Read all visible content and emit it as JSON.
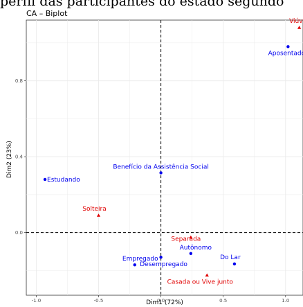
{
  "page": {
    "top_caption": "perfil das participantes do estado segundo"
  },
  "chart_data": {
    "type": "scatter",
    "title": "CA – Biplot",
    "xlabel": "Dim1 (72%)",
    "ylabel": "Dim2 (23%)",
    "xlim": [
      -1.08,
      1.14
    ],
    "ylim": [
      -0.33,
      1.12
    ],
    "x_ticks": [
      -1.0,
      -0.5,
      0.0,
      0.5,
      1.0
    ],
    "x_tick_labels": [
      "-1.0",
      "-0.5",
      "0.0",
      "0.5",
      "1.0"
    ],
    "y_ticks": [
      0.0,
      0.4,
      0.8
    ],
    "y_tick_labels": [
      "0.0",
      "0.4",
      "0.8"
    ],
    "grid": true,
    "series": [
      {
        "marker": "circle",
        "color": "#0000ee",
        "points": [
          {
            "label": "Aposentado",
            "x": 1.02,
            "y": 0.98
          },
          {
            "label": "Estudando",
            "x": -0.93,
            "y": 0.28
          },
          {
            "label": "Benefício da Assistência Social",
            "x": 0.0,
            "y": 0.315
          },
          {
            "label": "Empregado",
            "x": -0.21,
            "y": -0.17
          },
          {
            "label": "Desempregado",
            "x": 0.0,
            "y": -0.13
          },
          {
            "label": "Autônomo",
            "x": 0.24,
            "y": -0.11
          },
          {
            "label": "Do Lar",
            "x": 0.59,
            "y": -0.165
          }
        ]
      },
      {
        "marker": "triangle",
        "color": "#e00000",
        "points": [
          {
            "label": "Viúva",
            "x": 1.11,
            "y": 1.08
          },
          {
            "label": "Solteira",
            "x": -0.5,
            "y": 0.09
          },
          {
            "label": "Separada",
            "x": 0.24,
            "y": -0.025
          },
          {
            "label": "Casada ou Vive junto",
            "x": 0.37,
            "y": -0.225
          }
        ]
      }
    ]
  }
}
